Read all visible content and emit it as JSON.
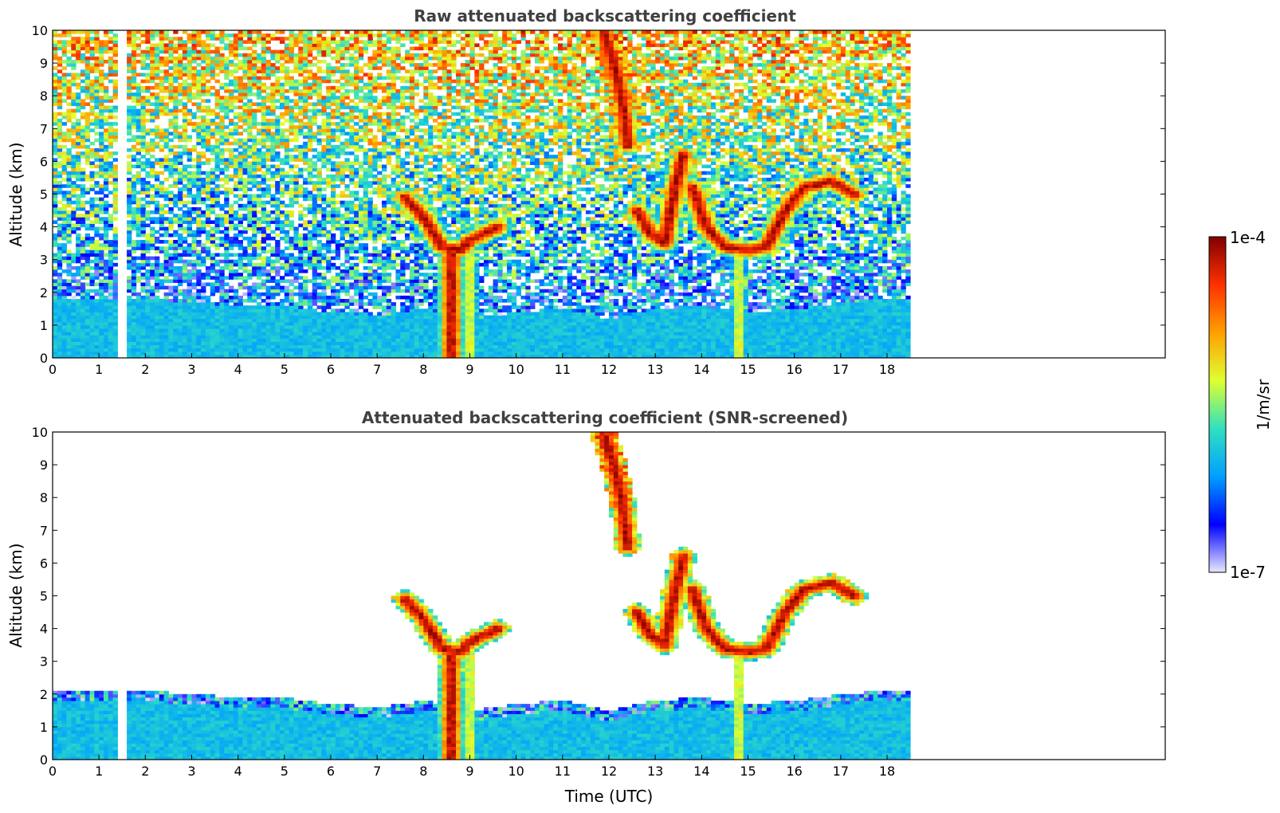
{
  "chart_data": [
    {
      "type": "heatmap",
      "title": "Raw attenuated backscattering coefficient",
      "xlabel": "",
      "ylabel": "Altitude (km)",
      "xlim": [
        0,
        24
      ],
      "ylim": [
        0,
        10
      ],
      "xticks": [
        "0",
        "1",
        "2",
        "3",
        "4",
        "5",
        "6",
        "7",
        "8",
        "9",
        "10",
        "11",
        "12",
        "13",
        "14",
        "15",
        "16",
        "17",
        "18"
      ],
      "yticks": [
        "0",
        "1",
        "2",
        "3",
        "4",
        "5",
        "6",
        "7",
        "8",
        "9",
        "10"
      ],
      "data_extent_hours": 18.5,
      "gaps_utc": [
        1.5
      ],
      "boundary_layer_top_km": [
        [
          0,
          1.8
        ],
        [
          2,
          1.8
        ],
        [
          4,
          1.6
        ],
        [
          5,
          1.6
        ],
        [
          6,
          1.4
        ],
        [
          7,
          1.3
        ],
        [
          8,
          1.5
        ],
        [
          9,
          1.2
        ],
        [
          10,
          1.4
        ],
        [
          11,
          1.5
        ],
        [
          12,
          1.2
        ],
        [
          13,
          1.5
        ],
        [
          14,
          1.6
        ],
        [
          15,
          1.4
        ],
        [
          16,
          1.5
        ],
        [
          17,
          1.7
        ],
        [
          18,
          1.8
        ],
        [
          18.5,
          1.8
        ]
      ],
      "cloud_features": [
        {
          "label": "cirrus",
          "points": [
            [
              11.9,
              9.9
            ],
            [
              12.1,
              9.0
            ],
            [
              12.3,
              7.8
            ],
            [
              12.4,
              6.5
            ]
          ],
          "level": "high"
        },
        {
          "label": "cloud layer",
          "points": [
            [
              12.6,
              4.5
            ],
            [
              12.9,
              3.8
            ],
            [
              13.2,
              3.5
            ],
            [
              13.4,
              5.0
            ],
            [
              13.6,
              6.2
            ]
          ],
          "level": "high"
        },
        {
          "label": "cloud layer",
          "points": [
            [
              13.8,
              5.2
            ],
            [
              14.1,
              4.0
            ],
            [
              14.5,
              3.4
            ],
            [
              15.0,
              3.3
            ],
            [
              15.4,
              3.4
            ],
            [
              15.8,
              4.5
            ],
            [
              16.2,
              5.2
            ],
            [
              16.8,
              5.4
            ],
            [
              17.3,
              5.0
            ]
          ],
          "level": "high"
        },
        {
          "label": "low cloud",
          "points": [
            [
              7.6,
              4.9
            ],
            [
              8.0,
              4.3
            ],
            [
              8.4,
              3.4
            ],
            [
              8.8,
              3.3
            ],
            [
              9.0,
              3.6
            ],
            [
              9.6,
              4.0
            ]
          ],
          "level": "high"
        },
        {
          "label": "precipitation",
          "points": [
            [
              8.6,
              3.2
            ],
            [
              8.6,
              0.0
            ]
          ],
          "level": "high"
        },
        {
          "label": "precipitation",
          "points": [
            [
              9.0,
              3.5
            ],
            [
              9.0,
              0.0
            ]
          ],
          "level": "mid"
        },
        {
          "label": "precipitation",
          "points": [
            [
              14.8,
              3.2
            ],
            [
              14.8,
              0.0
            ]
          ],
          "level": "mid"
        }
      ]
    },
    {
      "type": "heatmap",
      "title": "Attenuated backscattering coefficient (SNR-screened)",
      "xlabel": "Time (UTC)",
      "ylabel": "Altitude (km)",
      "xlim": [
        0,
        24
      ],
      "ylim": [
        0,
        10
      ],
      "xticks": [
        "0",
        "1",
        "2",
        "3",
        "4",
        "5",
        "6",
        "7",
        "8",
        "9",
        "10",
        "11",
        "12",
        "13",
        "14",
        "15",
        "16",
        "17",
        "18"
      ],
      "yticks": [
        "0",
        "1",
        "2",
        "3",
        "4",
        "5",
        "6",
        "7",
        "8",
        "9",
        "10"
      ],
      "data_extent_hours": 18.5
    }
  ],
  "colorbar": {
    "label": "1/m/sr",
    "min_label": "1e-7",
    "max_label": "1e-4",
    "colormap": "jet",
    "colors": [
      "#e8e8ff",
      "#0000ff",
      "#00a0ff",
      "#30e0c0",
      "#e0ff30",
      "#ffa000",
      "#ff3000",
      "#800000"
    ]
  }
}
